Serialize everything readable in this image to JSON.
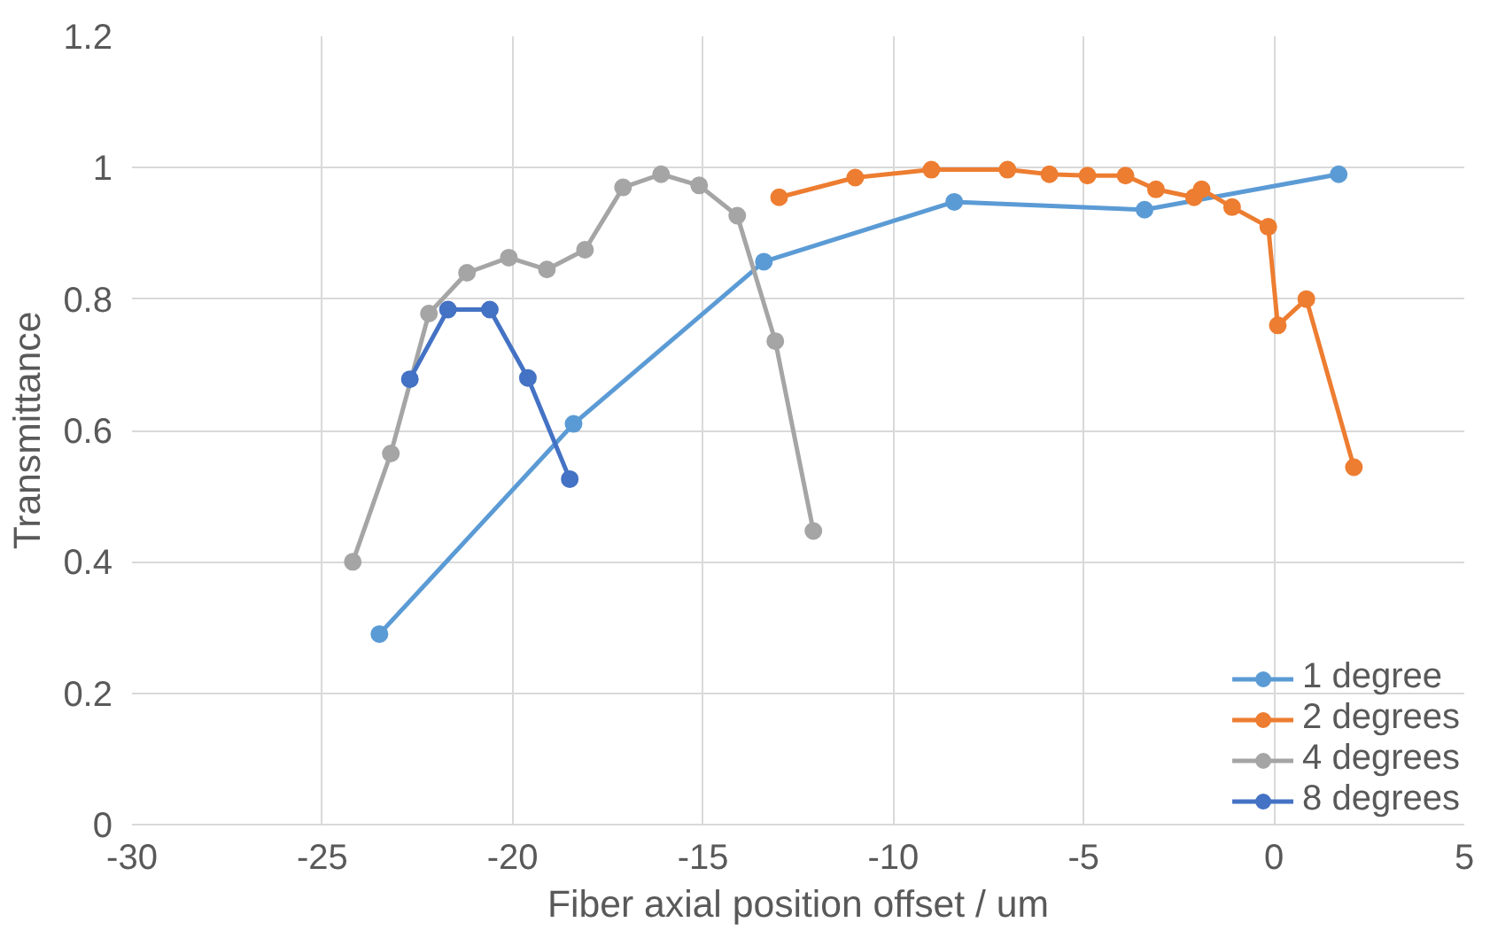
{
  "chart_data": {
    "type": "line",
    "xlabel": "Fiber axial position offset / um",
    "ylabel": "Transmittance",
    "xlim": [
      -30,
      5
    ],
    "xticks": [
      -30,
      -25,
      -20,
      -15,
      -10,
      -5,
      0,
      5
    ],
    "ylim": [
      0,
      1.2
    ],
    "yticks": [
      0,
      0.2,
      0.4,
      0.6,
      0.8,
      1,
      1.2
    ],
    "grid": true,
    "legend": "bottom right",
    "marker": "circle",
    "line_style": "solid",
    "series": [
      {
        "name": "1 degree",
        "color": "#5b9bd5",
        "x": [
          -23.5,
          -18.4,
          -13.4,
          -8.4,
          -3.4,
          1.7
        ],
        "values": [
          0.29,
          0.61,
          0.857,
          0.948,
          0.936,
          0.99
        ]
      },
      {
        "name": "2 degrees",
        "color": "#ed7d31",
        "x": [
          -13.0,
          -11.0,
          -9.0,
          -7.0,
          -5.9,
          -4.9,
          -3.9,
          -3.1,
          -2.1,
          -1.9,
          -1.1,
          -0.15,
          0.1,
          0.85,
          2.1
        ],
        "values": [
          0.955,
          0.985,
          0.997,
          0.997,
          0.99,
          0.988,
          0.988,
          0.967,
          0.955,
          0.967,
          0.94,
          0.91,
          0.76,
          0.8,
          0.544
        ]
      },
      {
        "name": "4 degrees",
        "color": "#a5a5a5",
        "x": [
          -24.2,
          -23.2,
          -22.2,
          -21.2,
          -20.1,
          -19.1,
          -18.1,
          -17.1,
          -16.1,
          -15.1,
          -14.1,
          -13.1,
          -12.1
        ],
        "values": [
          0.4,
          0.565,
          0.778,
          0.84,
          0.863,
          0.845,
          0.875,
          0.97,
          0.99,
          0.973,
          0.927,
          0.736,
          0.447
        ]
      },
      {
        "name": "8 degrees",
        "color": "#4472c4",
        "x": [
          -22.7,
          -21.7,
          -20.6,
          -19.6,
          -18.5
        ],
        "values": [
          0.678,
          0.784,
          0.784,
          0.68,
          0.526
        ]
      }
    ]
  }
}
